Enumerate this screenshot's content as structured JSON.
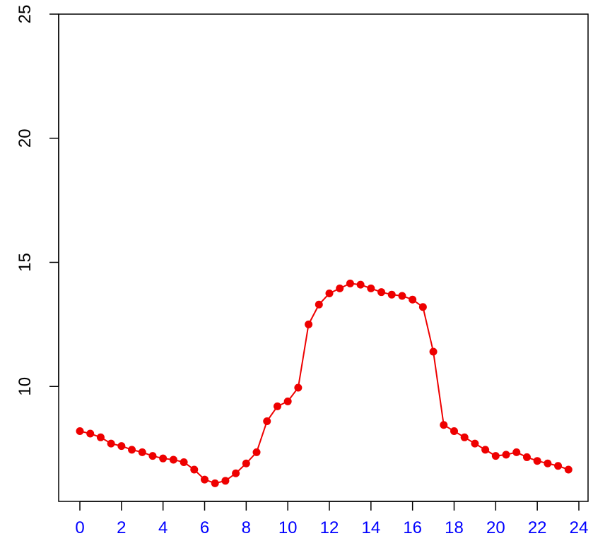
{
  "chart_data": {
    "type": "line",
    "title": "",
    "xlabel": "",
    "ylabel": "",
    "xlim": [
      0,
      24
    ],
    "ylim": [
      5,
      25
    ],
    "x_ticks": [
      0,
      2,
      4,
      6,
      8,
      10,
      12,
      14,
      16,
      18,
      20,
      22,
      24
    ],
    "y_ticks": [
      10,
      15,
      20,
      25
    ],
    "grid": false,
    "colors": {
      "series": "#ee0000",
      "x_tick_labels": "#0000ff",
      "axes": "#000000"
    },
    "series": [
      {
        "x": [
          0,
          0.5,
          1,
          1.5,
          2,
          2.5,
          3,
          3.5,
          4,
          4.5,
          5,
          5.5,
          6,
          6.5,
          7,
          7.5,
          8,
          8.5,
          9,
          9.5,
          10,
          10.5,
          11,
          11.5,
          12,
          12.5,
          13,
          13.5,
          14,
          14.5,
          15,
          15.5,
          16,
          16.5,
          17,
          17.5,
          18,
          18.5,
          19,
          19.5,
          20,
          20.5,
          21,
          21.5,
          22,
          22.5,
          23,
          23.5
        ],
        "values": [
          8.2,
          8.1,
          7.95,
          7.7,
          7.6,
          7.45,
          7.35,
          7.2,
          7.1,
          7.05,
          6.95,
          6.65,
          6.25,
          6.1,
          6.2,
          6.5,
          6.9,
          7.35,
          8.6,
          9.2,
          9.4,
          9.95,
          12.5,
          13.3,
          13.75,
          13.95,
          14.15,
          14.1,
          13.95,
          13.8,
          13.7,
          13.65,
          13.5,
          13.2,
          11.4,
          8.45,
          8.2,
          7.95,
          7.7,
          7.45,
          7.2,
          7.25,
          7.35,
          7.15,
          7.0,
          6.9,
          6.8,
          6.65
        ]
      }
    ]
  }
}
